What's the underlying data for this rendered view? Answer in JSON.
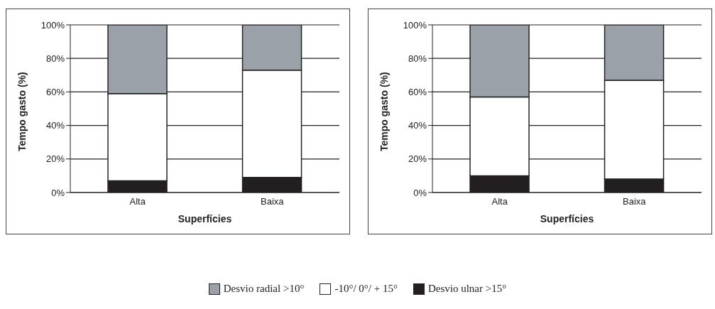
{
  "chart_data": [
    {
      "type": "bar",
      "stacked": true,
      "xlabel": "Superfícies",
      "ylabel": "Tempo gasto (%)",
      "categories": [
        "Alta",
        "Baixa"
      ],
      "series": [
        {
          "name": "Desvio ulnar >15°",
          "color": "#231f20",
          "values": [
            7,
            9
          ]
        },
        {
          "name": "-10°/ 0°/ + 15°",
          "color": "#ffffff",
          "values": [
            52,
            64
          ]
        },
        {
          "name": "Desvio radial >10°",
          "color": "#9aa1a9",
          "values": [
            41,
            27
          ]
        }
      ],
      "ylim": [
        0,
        100
      ],
      "yticks": [
        {
          "value": 0,
          "label": "0%"
        },
        {
          "value": 20,
          "label": "20%"
        },
        {
          "value": 40,
          "label": "40%"
        },
        {
          "value": 60,
          "label": "60%"
        },
        {
          "value": 80,
          "label": "80%"
        },
        {
          "value": 100,
          "label": "100%"
        }
      ],
      "grid": "y",
      "legend": "bottom"
    },
    {
      "type": "bar",
      "stacked": true,
      "xlabel": "Superfícies",
      "ylabel": "Tempo gasto (%)",
      "categories": [
        "Alta",
        "Baixa"
      ],
      "series": [
        {
          "color": "#231f20",
          "values": [
            10,
            8
          ]
        },
        {
          "color": "#ffffff",
          "values": [
            47,
            59
          ]
        },
        {
          "color": "#9aa1a9",
          "values": [
            43,
            33
          ]
        }
      ],
      "ylim": [
        0,
        100
      ],
      "yticks": [
        {
          "value": 0,
          "label": "0%"
        },
        {
          "value": 20,
          "label": "20%"
        },
        {
          "value": 40,
          "label": "40%"
        },
        {
          "value": 60,
          "label": "60%"
        },
        {
          "value": 80,
          "label": "80%"
        },
        {
          "value": 100,
          "label": "100%"
        }
      ],
      "grid": "y"
    }
  ]
}
